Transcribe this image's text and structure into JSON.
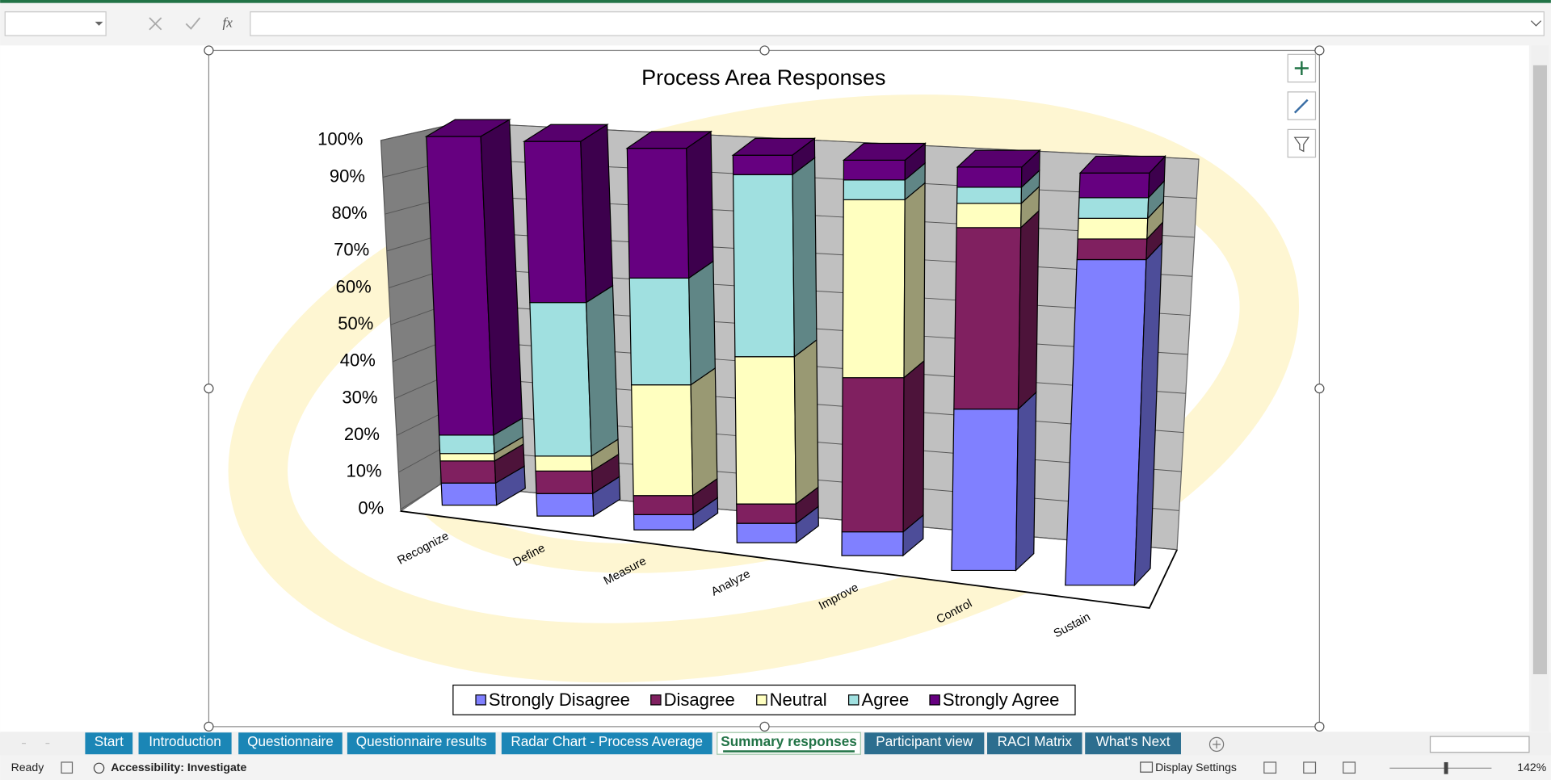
{
  "ui": {
    "fx": "fx",
    "tabs": [
      "Start",
      "Introduction",
      "Questionnaire",
      "Questionnaire results",
      "Radar Chart - Process Average",
      "Summary responses",
      "Participant view",
      "RACI Matrix",
      "What's Next"
    ],
    "active_tab": 5,
    "status": "Ready",
    "accessibility": "Accessibility: Investigate",
    "display_settings": "Display Settings",
    "zoom": "142%"
  },
  "chart_data": {
    "type": "bar3d_stacked_percent",
    "title": "Process Area Responses",
    "categories": [
      "Recognize",
      "Define",
      "Measure",
      "Analyze",
      "Improve",
      "Control",
      "Sustain"
    ],
    "series": [
      {
        "name": "Strongly Disagree",
        "color": "#8080ff",
        "values": [
          6,
          6,
          4,
          5,
          6,
          40,
          79
        ]
      },
      {
        "name": "Disagree",
        "color": "#802060",
        "values": [
          6,
          6,
          5,
          5,
          39,
          45,
          5
        ]
      },
      {
        "name": "Neutral",
        "color": "#ffffc0",
        "values": [
          2,
          4,
          29,
          38,
          45,
          6,
          5
        ]
      },
      {
        "name": "Agree",
        "color": "#a0e0e0",
        "values": [
          5,
          41,
          28,
          47,
          5,
          4,
          5
        ]
      },
      {
        "name": "Strongly Agree",
        "color": "#660080",
        "values": [
          81,
          43,
          34,
          5,
          5,
          5,
          6
        ]
      }
    ],
    "ylim": [
      0,
      100
    ],
    "yticks": [
      {
        "value": 0,
        "label": "0%"
      },
      {
        "value": 10,
        "label": "10%"
      },
      {
        "value": 20,
        "label": "20%"
      },
      {
        "value": 30,
        "label": "30%"
      },
      {
        "value": 40,
        "label": "40%"
      },
      {
        "value": 50,
        "label": "50%"
      },
      {
        "value": 60,
        "label": "60%"
      },
      {
        "value": 70,
        "label": "70%"
      },
      {
        "value": 80,
        "label": "80%"
      },
      {
        "value": 90,
        "label": "90%"
      },
      {
        "value": 100,
        "label": "100%"
      }
    ],
    "grid": true,
    "legend": "bottom"
  }
}
